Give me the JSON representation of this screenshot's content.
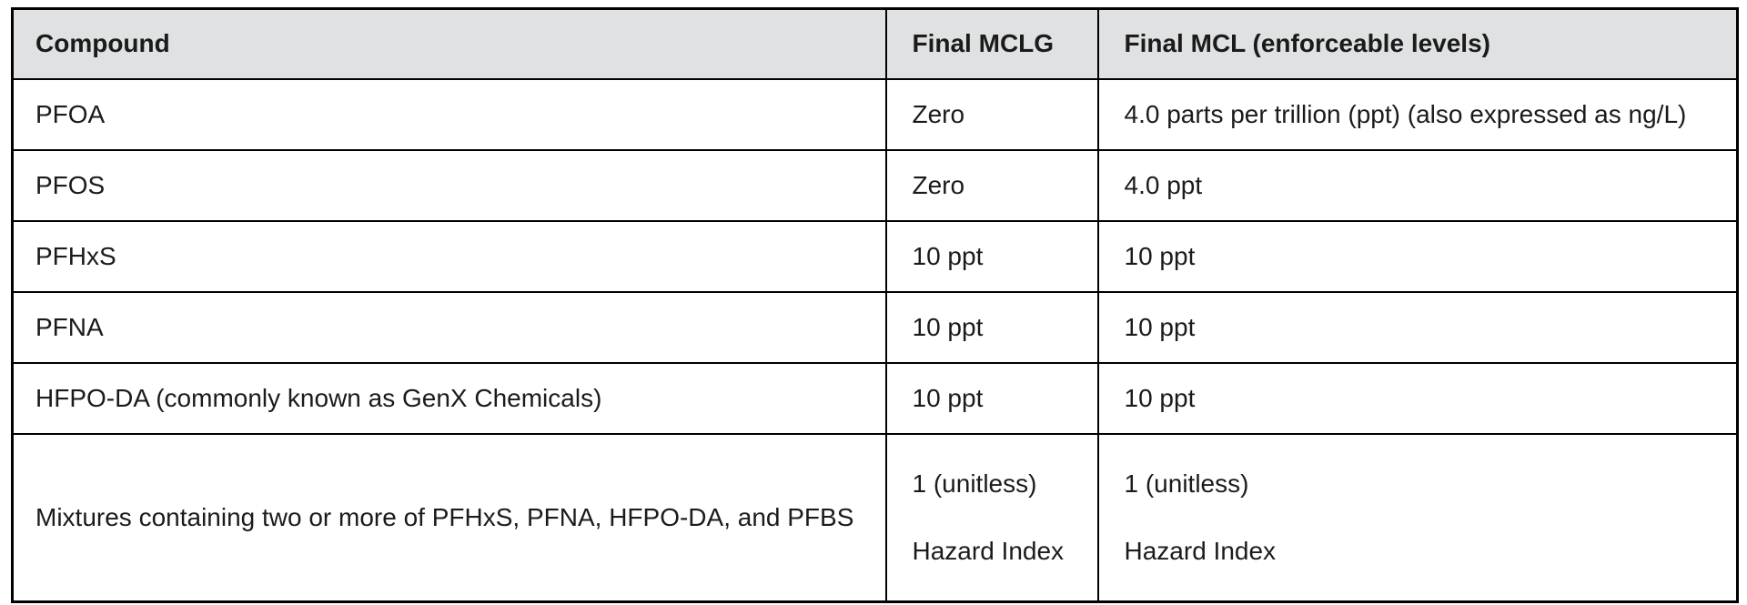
{
  "table": {
    "columns": [
      {
        "key": "compound",
        "label": "Compound"
      },
      {
        "key": "mclg",
        "label": "Final MCLG"
      },
      {
        "key": "mcl",
        "label": "Final MCL (enforceable levels)"
      }
    ],
    "rows": [
      {
        "compound": "PFOA",
        "mclg": "Zero",
        "mcl": "4.0 parts per trillion (ppt) (also expressed as ng/L)"
      },
      {
        "compound": "PFOS",
        "mclg": "Zero",
        "mcl": "4.0 ppt"
      },
      {
        "compound": "PFHxS",
        "mclg": "10 ppt",
        "mcl": "10 ppt"
      },
      {
        "compound": "PFNA",
        "mclg": "10 ppt",
        "mcl": "10 ppt"
      },
      {
        "compound": "HFPO-DA (commonly known as GenX Chemicals)",
        "mclg": "10 ppt",
        "mcl": "10 ppt"
      },
      {
        "compound": "Mixtures containing two or more of PFHxS, PFNA, HFPO-DA, and PFBS",
        "mclg_line1": "1 (unitless)",
        "mclg_line2": "Hazard Index",
        "mcl_line1": "1 (unitless)",
        "mcl_line2": "Hazard Index"
      }
    ],
    "colors": {
      "header_bg": "#dfe1e2",
      "row_bg": "#ffffff",
      "border": "#000000",
      "text": "#1b1b1b"
    }
  }
}
